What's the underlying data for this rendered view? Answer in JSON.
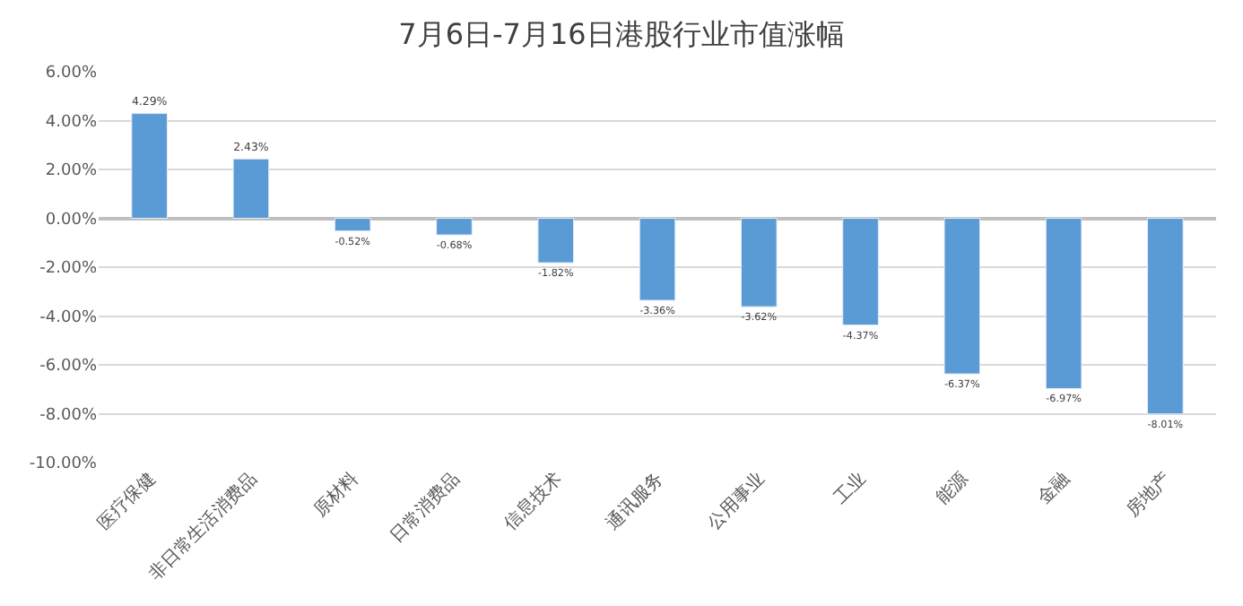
{
  "chart_data": {
    "type": "bar",
    "title": "7月6日-7月16日港股行业市值涨幅",
    "categories": [
      "医疗保健",
      "非日常生活消费品",
      "原材料",
      "日常消费品",
      "信息技术",
      "通讯服务",
      "公用事业",
      "工业",
      "能源",
      "金融",
      "房地产"
    ],
    "values": [
      4.29,
      2.43,
      -0.52,
      -0.68,
      -1.82,
      -3.36,
      -3.62,
      -4.37,
      -6.37,
      -6.97,
      -8.01
    ],
    "value_labels": [
      "4.29%",
      "2.43%",
      "-0.52%",
      "-0.68%",
      "-1.82%",
      "-3.36%",
      "-3.62%",
      "-4.37%",
      "-6.37%",
      "-6.97%",
      "-8.01%"
    ],
    "color": "#5b9bd5",
    "ylim": [
      -10,
      6
    ],
    "yticks": [
      {
        "value": -10,
        "label": "-10.00%"
      },
      {
        "value": -8,
        "label": "-8.00%"
      },
      {
        "value": -6,
        "label": "-6.00%"
      },
      {
        "value": -4,
        "label": "-4.00%"
      },
      {
        "value": -2,
        "label": "-2.00%"
      },
      {
        "value": 0,
        "label": "0.00%"
      },
      {
        "value": 2,
        "label": "2.00%"
      },
      {
        "value": 4,
        "label": "4.00%"
      },
      {
        "value": 6,
        "label": "6.00%"
      }
    ],
    "grid": "y"
  }
}
